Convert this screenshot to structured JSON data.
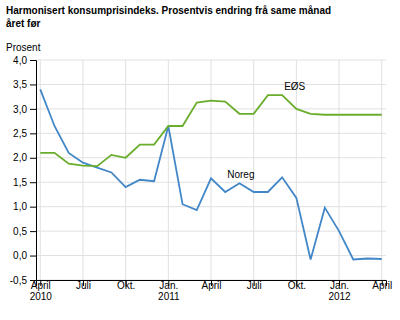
{
  "chart_data": {
    "type": "line",
    "title": "Harmonisert konsumprisindeks. Prosentvis endring frå same månad\nåret før",
    "ylabel": "Prosent",
    "categories": [
      "April\n2010",
      null,
      null,
      "Juli",
      null,
      null,
      "Okt.",
      null,
      null,
      "Jan.\n2011",
      null,
      null,
      "April",
      null,
      null,
      "Juli",
      null,
      null,
      "Okt.",
      null,
      null,
      "Jan.\n2012",
      null,
      null,
      "April"
    ],
    "series": [
      {
        "name": "Noreg",
        "color": "#4287C8",
        "values": [
          3.4,
          2.65,
          2.1,
          1.9,
          1.8,
          1.7,
          1.4,
          1.55,
          1.52,
          2.65,
          1.05,
          0.93,
          1.58,
          1.3,
          1.48,
          1.3,
          1.3,
          1.6,
          1.18,
          -0.08,
          0.98,
          0.5,
          -0.08,
          -0.06,
          -0.07
        ]
      },
      {
        "name": "EØS",
        "color": "#6AAD2C",
        "values": [
          2.1,
          2.1,
          1.88,
          1.84,
          1.83,
          2.06,
          2.0,
          2.27,
          2.27,
          2.65,
          2.65,
          3.13,
          3.17,
          3.15,
          2.9,
          2.9,
          3.28,
          3.28,
          3.0,
          2.9,
          2.88,
          2.88,
          2.88,
          2.88,
          2.88
        ]
      }
    ],
    "ylim": [
      -0.5,
      4.0
    ],
    "yticks": [
      {
        "value": -0.5,
        "label": "-0,5"
      },
      {
        "value": 0.0,
        "label": "0,0"
      },
      {
        "value": 0.5,
        "label": "0,5"
      },
      {
        "value": 1.0,
        "label": "1,0"
      },
      {
        "value": 1.5,
        "label": "1,5"
      },
      {
        "value": 2.0,
        "label": "2,0"
      },
      {
        "value": 2.5,
        "label": "2,5"
      },
      {
        "value": 3.0,
        "label": "3,0"
      },
      {
        "value": 3.5,
        "label": "3,5"
      },
      {
        "value": 4.0,
        "label": "4,0"
      }
    ],
    "grid": true
  }
}
